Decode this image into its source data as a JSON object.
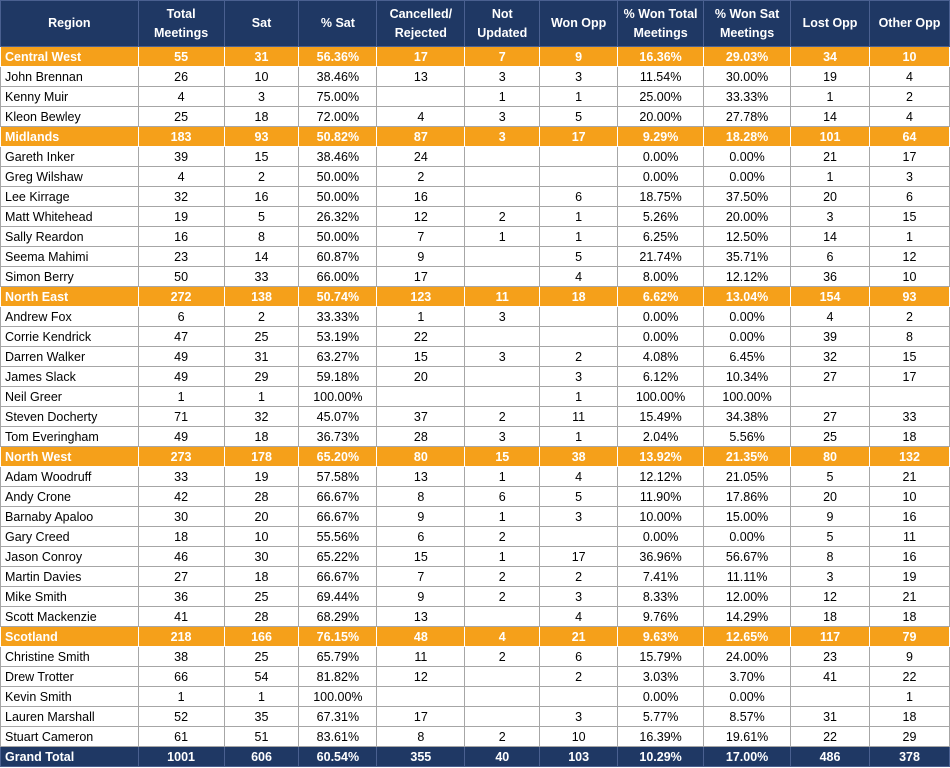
{
  "headers": [
    "Region",
    "Total Meetings",
    "Sat",
    "% Sat",
    "Cancelled/ Rejected",
    "Not Updated",
    "Won Opp",
    "% Won Total Meetings",
    "% Won Sat Meetings",
    "Lost Opp",
    "Other Opp"
  ],
  "rows": [
    {
      "type": "region",
      "cells": [
        "Central West",
        "55",
        "31",
        "56.36%",
        "17",
        "7",
        "9",
        "16.36%",
        "29.03%",
        "34",
        "10"
      ]
    },
    {
      "type": "person",
      "cells": [
        "John Brennan",
        "26",
        "10",
        "38.46%",
        "13",
        "3",
        "3",
        "11.54%",
        "30.00%",
        "19",
        "4"
      ]
    },
    {
      "type": "person",
      "cells": [
        "Kenny Muir",
        "4",
        "3",
        "75.00%",
        "",
        "1",
        "1",
        "25.00%",
        "33.33%",
        "1",
        "2"
      ]
    },
    {
      "type": "person",
      "cells": [
        "Kleon Bewley",
        "25",
        "18",
        "72.00%",
        "4",
        "3",
        "5",
        "20.00%",
        "27.78%",
        "14",
        "4"
      ]
    },
    {
      "type": "region",
      "cells": [
        "Midlands",
        "183",
        "93",
        "50.82%",
        "87",
        "3",
        "17",
        "9.29%",
        "18.28%",
        "101",
        "64"
      ]
    },
    {
      "type": "person",
      "cells": [
        "Gareth Inker",
        "39",
        "15",
        "38.46%",
        "24",
        "",
        "",
        "0.00%",
        "0.00%",
        "21",
        "17"
      ]
    },
    {
      "type": "person",
      "cells": [
        "Greg Wilshaw",
        "4",
        "2",
        "50.00%",
        "2",
        "",
        "",
        "0.00%",
        "0.00%",
        "1",
        "3"
      ]
    },
    {
      "type": "person",
      "cells": [
        "Lee Kirrage",
        "32",
        "16",
        "50.00%",
        "16",
        "",
        "6",
        "18.75%",
        "37.50%",
        "20",
        "6"
      ]
    },
    {
      "type": "person",
      "cells": [
        "Matt Whitehead",
        "19",
        "5",
        "26.32%",
        "12",
        "2",
        "1",
        "5.26%",
        "20.00%",
        "3",
        "15"
      ]
    },
    {
      "type": "person",
      "cells": [
        "Sally Reardon",
        "16",
        "8",
        "50.00%",
        "7",
        "1",
        "1",
        "6.25%",
        "12.50%",
        "14",
        "1"
      ]
    },
    {
      "type": "person",
      "cells": [
        "Seema Mahimi",
        "23",
        "14",
        "60.87%",
        "9",
        "",
        "5",
        "21.74%",
        "35.71%",
        "6",
        "12"
      ]
    },
    {
      "type": "person",
      "cells": [
        "Simon Berry",
        "50",
        "33",
        "66.00%",
        "17",
        "",
        "4",
        "8.00%",
        "12.12%",
        "36",
        "10"
      ]
    },
    {
      "type": "region",
      "cells": [
        "North East",
        "272",
        "138",
        "50.74%",
        "123",
        "11",
        "18",
        "6.62%",
        "13.04%",
        "154",
        "93"
      ]
    },
    {
      "type": "person",
      "cells": [
        "Andrew Fox",
        "6",
        "2",
        "33.33%",
        "1",
        "3",
        "",
        "0.00%",
        "0.00%",
        "4",
        "2"
      ]
    },
    {
      "type": "person",
      "cells": [
        "Corrie Kendrick",
        "47",
        "25",
        "53.19%",
        "22",
        "",
        "",
        "0.00%",
        "0.00%",
        "39",
        "8"
      ]
    },
    {
      "type": "person",
      "cells": [
        "Darren Walker",
        "49",
        "31",
        "63.27%",
        "15",
        "3",
        "2",
        "4.08%",
        "6.45%",
        "32",
        "15"
      ]
    },
    {
      "type": "person",
      "cells": [
        "James Slack",
        "49",
        "29",
        "59.18%",
        "20",
        "",
        "3",
        "6.12%",
        "10.34%",
        "27",
        "17"
      ]
    },
    {
      "type": "person",
      "cells": [
        "Neil Greer",
        "1",
        "1",
        "100.00%",
        "",
        "",
        "1",
        "100.00%",
        "100.00%",
        "",
        ""
      ]
    },
    {
      "type": "person",
      "cells": [
        "Steven Docherty",
        "71",
        "32",
        "45.07%",
        "37",
        "2",
        "11",
        "15.49%",
        "34.38%",
        "27",
        "33"
      ]
    },
    {
      "type": "person",
      "cells": [
        "Tom Everingham",
        "49",
        "18",
        "36.73%",
        "28",
        "3",
        "1",
        "2.04%",
        "5.56%",
        "25",
        "18"
      ]
    },
    {
      "type": "region",
      "cells": [
        "North West",
        "273",
        "178",
        "65.20%",
        "80",
        "15",
        "38",
        "13.92%",
        "21.35%",
        "80",
        "132"
      ]
    },
    {
      "type": "person",
      "cells": [
        "Adam Woodruff",
        "33",
        "19",
        "57.58%",
        "13",
        "1",
        "4",
        "12.12%",
        "21.05%",
        "5",
        "21"
      ]
    },
    {
      "type": "person",
      "cells": [
        "Andy Crone",
        "42",
        "28",
        "66.67%",
        "8",
        "6",
        "5",
        "11.90%",
        "17.86%",
        "20",
        "10"
      ]
    },
    {
      "type": "person",
      "cells": [
        "Barnaby Apaloo",
        "30",
        "20",
        "66.67%",
        "9",
        "1",
        "3",
        "10.00%",
        "15.00%",
        "9",
        "16"
      ]
    },
    {
      "type": "person",
      "cells": [
        "Gary Creed",
        "18",
        "10",
        "55.56%",
        "6",
        "2",
        "",
        "0.00%",
        "0.00%",
        "5",
        "11"
      ]
    },
    {
      "type": "person",
      "cells": [
        "Jason Conroy",
        "46",
        "30",
        "65.22%",
        "15",
        "1",
        "17",
        "36.96%",
        "56.67%",
        "8",
        "16"
      ]
    },
    {
      "type": "person",
      "cells": [
        "Martin Davies",
        "27",
        "18",
        "66.67%",
        "7",
        "2",
        "2",
        "7.41%",
        "11.11%",
        "3",
        "19"
      ]
    },
    {
      "type": "person",
      "cells": [
        "Mike Smith",
        "36",
        "25",
        "69.44%",
        "9",
        "2",
        "3",
        "8.33%",
        "12.00%",
        "12",
        "21"
      ]
    },
    {
      "type": "person",
      "cells": [
        "Scott Mackenzie",
        "41",
        "28",
        "68.29%",
        "13",
        "",
        "4",
        "9.76%",
        "14.29%",
        "18",
        "18"
      ]
    },
    {
      "type": "region",
      "cells": [
        "Scotland",
        "218",
        "166",
        "76.15%",
        "48",
        "4",
        "21",
        "9.63%",
        "12.65%",
        "117",
        "79"
      ]
    },
    {
      "type": "person",
      "cells": [
        "Christine Smith",
        "38",
        "25",
        "65.79%",
        "11",
        "2",
        "6",
        "15.79%",
        "24.00%",
        "23",
        "9"
      ]
    },
    {
      "type": "person",
      "cells": [
        "Drew Trotter",
        "66",
        "54",
        "81.82%",
        "12",
        "",
        "2",
        "3.03%",
        "3.70%",
        "41",
        "22"
      ]
    },
    {
      "type": "person",
      "cells": [
        "Kevin Smith",
        "1",
        "1",
        "100.00%",
        "",
        "",
        "",
        "0.00%",
        "0.00%",
        "",
        "1"
      ]
    },
    {
      "type": "person",
      "cells": [
        "Lauren Marshall",
        "52",
        "35",
        "67.31%",
        "17",
        "",
        "3",
        "5.77%",
        "8.57%",
        "31",
        "18"
      ]
    },
    {
      "type": "person",
      "cells": [
        "Stuart Cameron",
        "61",
        "51",
        "83.61%",
        "8",
        "2",
        "10",
        "16.39%",
        "19.61%",
        "22",
        "29"
      ]
    },
    {
      "type": "grand",
      "cells": [
        "Grand Total",
        "1001",
        "606",
        "60.54%",
        "355",
        "40",
        "103",
        "10.29%",
        "17.00%",
        "486",
        "378"
      ]
    }
  ],
  "colors": {
    "header_bg": "#1f3864",
    "region_bg": "#f5a01a",
    "grand_bg": "#1f3864",
    "border": "#a6a6a6"
  }
}
